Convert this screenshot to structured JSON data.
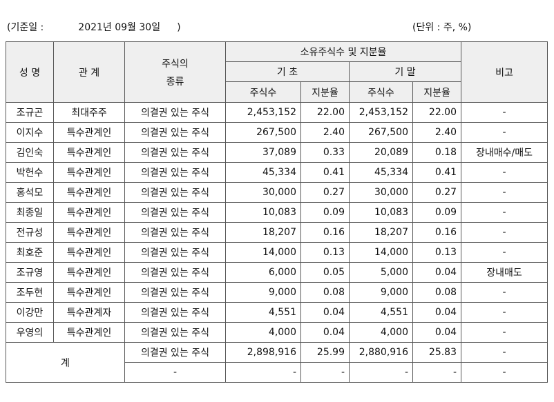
{
  "header": {
    "base_date_label": "(기준일 :",
    "base_date_value": "2021년 09월 30일",
    "base_date_close": ")",
    "unit": "(단위 : 주, %)"
  },
  "table": {
    "headers": {
      "name": "성 명",
      "relation": "관 계",
      "stock_type_line1": "주식의",
      "stock_type_line2": "종류",
      "ownership_group": "소유주식수 및 지분율",
      "period_start": "기 초",
      "period_end": "기 말",
      "shares": "주식수",
      "ratio": "지분율",
      "note": "비고"
    },
    "rows": [
      {
        "name": "조규곤",
        "relation": "최대주주",
        "type": "의결권 있는 주식",
        "start_shares": "2,453,152",
        "start_ratio": "22.00",
        "end_shares": "2,453,152",
        "end_ratio": "22.00",
        "note": "-"
      },
      {
        "name": "이지수",
        "relation": "특수관계인",
        "type": "의결권 있는 주식",
        "start_shares": "267,500",
        "start_ratio": "2.40",
        "end_shares": "267,500",
        "end_ratio": "2.40",
        "note": "-"
      },
      {
        "name": "김인숙",
        "relation": "특수관계인",
        "type": "의결권 있는 주식",
        "start_shares": "37,089",
        "start_ratio": "0.33",
        "end_shares": "20,089",
        "end_ratio": "0.18",
        "note": "장내매수/매도"
      },
      {
        "name": "박헌수",
        "relation": "특수관계인",
        "type": "의결권 있는 주식",
        "start_shares": "45,334",
        "start_ratio": "0.41",
        "end_shares": "45,334",
        "end_ratio": "0.41",
        "note": "-"
      },
      {
        "name": "홍석모",
        "relation": "특수관계인",
        "type": "의결권 있는 주식",
        "start_shares": "30,000",
        "start_ratio": "0.27",
        "end_shares": "30,000",
        "end_ratio": "0.27",
        "note": "-"
      },
      {
        "name": "최종일",
        "relation": "특수관계인",
        "type": "의결권 있는 주식",
        "start_shares": "10,083",
        "start_ratio": "0.09",
        "end_shares": "10,083",
        "end_ratio": "0.09",
        "note": "-"
      },
      {
        "name": "전규성",
        "relation": "특수관계인",
        "type": "의결권 있는 주식",
        "start_shares": "18,207",
        "start_ratio": "0.16",
        "end_shares": "18,207",
        "end_ratio": "0.16",
        "note": "-"
      },
      {
        "name": "최호준",
        "relation": "특수관계인",
        "type": "의결권 있는 주식",
        "start_shares": "14,000",
        "start_ratio": "0.13",
        "end_shares": "14,000",
        "end_ratio": "0.13",
        "note": "-"
      },
      {
        "name": "조규영",
        "relation": "특수관계인",
        "type": "의결권 있는 주식",
        "start_shares": "6,000",
        "start_ratio": "0.05",
        "end_shares": "5,000",
        "end_ratio": "0.04",
        "note": "장내매도"
      },
      {
        "name": "조두현",
        "relation": "특수관계인",
        "type": "의결권 있는 주식",
        "start_shares": "9,000",
        "start_ratio": "0.08",
        "end_shares": "9,000",
        "end_ratio": "0.08",
        "note": "-"
      },
      {
        "name": "이강만",
        "relation": "특수관계자",
        "type": "의결권 있는 주식",
        "start_shares": "4,551",
        "start_ratio": "0.04",
        "end_shares": "4,551",
        "end_ratio": "0.04",
        "note": "-"
      },
      {
        "name": "우영의",
        "relation": "특수관계인",
        "type": "의결권 있는 주식",
        "start_shares": "4,000",
        "start_ratio": "0.04",
        "end_shares": "4,000",
        "end_ratio": "0.04",
        "note": "-"
      }
    ],
    "total": {
      "label": "계",
      "rows": [
        {
          "type": "의결권 있는 주식",
          "start_shares": "2,898,916",
          "start_ratio": "25.99",
          "end_shares": "2,880,916",
          "end_ratio": "25.83",
          "note": "-"
        },
        {
          "type": "-",
          "start_shares": "-",
          "start_ratio": "-",
          "end_shares": "-",
          "end_ratio": "-",
          "note": "-"
        }
      ]
    }
  }
}
